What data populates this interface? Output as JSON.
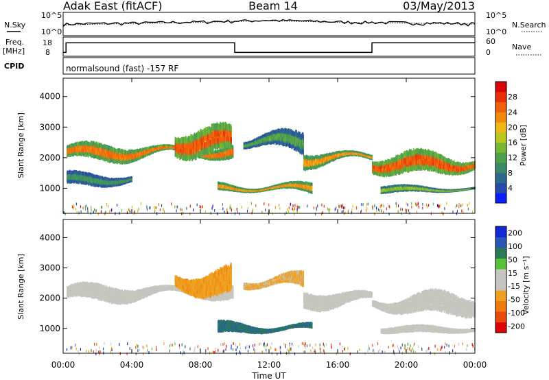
{
  "header": {
    "radar": "Adak East (fitACF)",
    "beam": "Beam 14",
    "date": "03/May/2013"
  },
  "summary_labels": {
    "nsky": "N.Sky",
    "nsearch": "N.Search",
    "freq": "Freq.",
    "mhz": "[MHz]",
    "nave": "Nave",
    "cpid": "CPID",
    "cpid_value": "normalsound (fast) -157 RF",
    "noise_top": "10^5",
    "noise_bottom": "10^0",
    "freq_top": "18",
    "freq_bottom": "8",
    "nave_top": "60",
    "nave_bottom": "0"
  },
  "colors": {
    "power_scale": [
      "#0a1eff",
      "#2a4aa8",
      "#2e6a8c",
      "#3a8a6a",
      "#4ea04c",
      "#76b832",
      "#b8c81e",
      "#f0b814",
      "#f28a0e",
      "#f0600a",
      "#e83008",
      "#d80606"
    ],
    "velocity_scale": [
      "#1428d8",
      "#2a56b8",
      "#2a7a5a",
      "#56c238",
      "#c6c6c0",
      "#c6c6c0",
      "#f0a020",
      "#f07a10",
      "#ec4a0a",
      "#e00606"
    ]
  },
  "chart_data": [
    {
      "type": "line",
      "name": "noise-sky-search",
      "ylabel": "N.Sky",
      "y_scale": "log",
      "ylim": [
        1,
        100000
      ],
      "x": [
        "00:00",
        "04:00",
        "08:00",
        "12:00",
        "16:00",
        "20:00",
        "00:00"
      ],
      "series": [
        {
          "name": "N.Sky",
          "values": [
            300,
            500,
            900,
            2000,
            900,
            600,
            400
          ]
        },
        {
          "name": "N.Search",
          "values": [
            200,
            400,
            700,
            1500,
            700,
            500,
            300
          ]
        }
      ]
    },
    {
      "type": "line",
      "name": "frequency-nave",
      "ylabel": "Freq. [MHz]",
      "ylim": [
        8,
        18
      ],
      "x": [
        "00:00",
        "00:10",
        "10:00",
        "18:00",
        "24:00"
      ],
      "series": [
        {
          "name": "Freq.",
          "values": [
            10,
            15,
            10,
            15,
            15
          ]
        },
        {
          "name": "Nave",
          "values": [
            8,
            8,
            8,
            8,
            8
          ]
        }
      ]
    },
    {
      "type": "heatmap",
      "name": "power",
      "title": "",
      "xlabel": "",
      "ylabel": "Slant Range [km]",
      "colorbar_label": "Power [dB]",
      "colorbar_ticks": [
        "4",
        "8",
        "12",
        "16",
        "20",
        "24",
        "28"
      ],
      "clim": [
        0,
        30
      ],
      "x_ticks": [
        "00:00",
        "04:00",
        "08:00",
        "12:00",
        "16:00",
        "20:00",
        "00:00"
      ],
      "y_ticks": [
        "1000",
        "2000",
        "3000",
        "4000"
      ],
      "ylim": [
        180,
        4600
      ],
      "xlim_hours": [
        0,
        24
      ],
      "bands": [
        {
          "t_start": 0.2,
          "t_end": 9.9,
          "range_km": [
            1800,
            2700
          ],
          "peak_db": 28
        },
        {
          "t_start": 0.2,
          "t_end": 4.0,
          "range_km": [
            1000,
            1700
          ],
          "peak_db": 12
        },
        {
          "t_start": 6.5,
          "t_end": 9.8,
          "range_km": [
            1900,
            3400
          ],
          "peak_db": 30
        },
        {
          "t_start": 9.0,
          "t_end": 14.5,
          "range_km": [
            700,
            1400
          ],
          "peak_db": 26
        },
        {
          "t_start": 10.5,
          "t_end": 14.0,
          "range_km": [
            2000,
            3200
          ],
          "peak_db": 14
        },
        {
          "t_start": 14.0,
          "t_end": 18.0,
          "range_km": [
            1600,
            2500
          ],
          "peak_db": 26
        },
        {
          "t_start": 18.0,
          "t_end": 24.0,
          "range_km": [
            1300,
            2500
          ],
          "peak_db": 30
        },
        {
          "t_start": 18.5,
          "t_end": 24.0,
          "range_km": [
            800,
            1200
          ],
          "peak_db": 18
        }
      ]
    },
    {
      "type": "heatmap",
      "name": "velocity",
      "title": "",
      "xlabel": "Time UT",
      "ylabel": "Slant Range [km]",
      "colorbar_label": "Velocity [m s⁻¹]",
      "colorbar_ticks": [
        "200",
        "100",
        "50",
        "15",
        "-15",
        "-50",
        "-100",
        "-200"
      ],
      "clim": [
        -250,
        250
      ],
      "x_ticks": [
        "00:00",
        "04:00",
        "08:00",
        "12:00",
        "16:00",
        "20:00",
        "00:00"
      ],
      "y_ticks": [
        "1000",
        "2000",
        "3000",
        "4000"
      ],
      "ylim": [
        180,
        4600
      ],
      "xlim_hours": [
        0,
        24
      ],
      "bands": [
        {
          "t_start": 0.2,
          "t_end": 9.9,
          "range_km": [
            1800,
            2700
          ],
          "velocity": 0
        },
        {
          "t_start": 6.5,
          "t_end": 9.8,
          "range_km": [
            1900,
            3400
          ],
          "velocity": -40
        },
        {
          "t_start": 9.0,
          "t_end": 14.5,
          "range_km": [
            700,
            1400
          ],
          "velocity": 70
        },
        {
          "t_start": 10.5,
          "t_end": 14.0,
          "range_km": [
            2000,
            3200
          ],
          "velocity": -20
        },
        {
          "t_start": 14.0,
          "t_end": 18.0,
          "range_km": [
            1600,
            2500
          ],
          "velocity": 0
        },
        {
          "t_start": 18.0,
          "t_end": 24.0,
          "range_km": [
            1300,
            2500
          ],
          "velocity": 0
        },
        {
          "t_start": 18.5,
          "t_end": 24.0,
          "range_km": [
            800,
            1200
          ],
          "velocity": 0
        }
      ]
    }
  ]
}
